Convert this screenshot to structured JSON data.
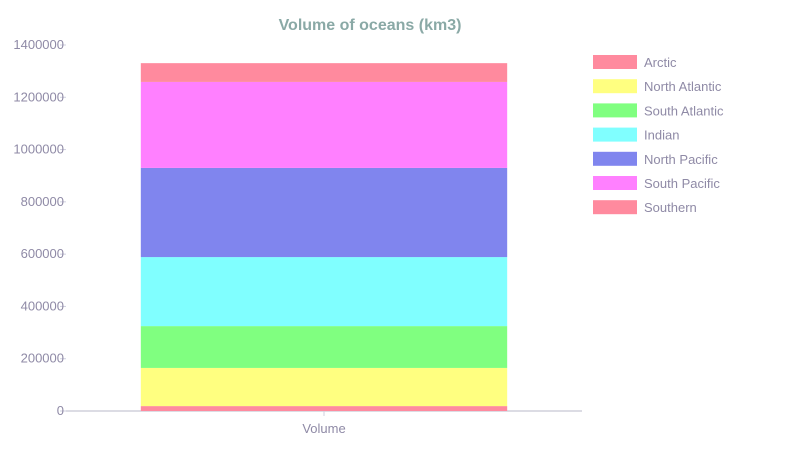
{
  "chart_data": {
    "type": "bar",
    "stacked": true,
    "title": "Volume of oceans (km3)",
    "categories": [
      "Volume"
    ],
    "ylim": [
      0,
      1400000
    ],
    "yticks": [
      "0",
      "200000",
      "400000",
      "600000",
      "800000",
      "1000000",
      "1200000",
      "1400000"
    ],
    "legend_position": "right",
    "grid": false,
    "series": [
      {
        "name": "Arctic",
        "values": [
          18750
        ],
        "color": "#ff8a9e"
      },
      {
        "name": "North Atlantic",
        "values": [
          146000
        ],
        "color": "#ffff80"
      },
      {
        "name": "South Atlantic",
        "values": [
          160000
        ],
        "color": "#80ff80"
      },
      {
        "name": "Indian",
        "values": [
          264000
        ],
        "color": "#80ffff"
      },
      {
        "name": "North Pacific",
        "values": [
          341000
        ],
        "color": "#8085ee"
      },
      {
        "name": "South Pacific",
        "values": [
          329000
        ],
        "color": "#ff80ff"
      },
      {
        "name": "Southern",
        "values": [
          71800
        ],
        "color": "#ff8a9e"
      }
    ]
  }
}
